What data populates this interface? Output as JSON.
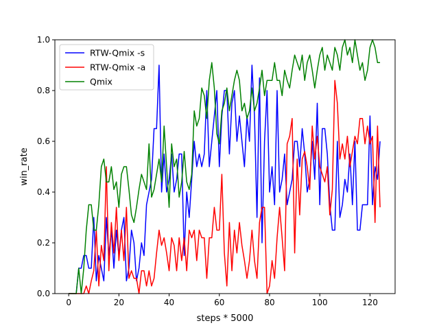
{
  "chart_data": {
    "type": "line",
    "title": "",
    "xlabel": "steps * 5000",
    "ylabel": "win_rate",
    "xlim": [
      -5.5,
      130
    ],
    "ylim": [
      0.0,
      1.0
    ],
    "xticks": [
      0,
      20,
      40,
      60,
      80,
      100,
      120
    ],
    "yticks": [
      0.0,
      0.2,
      0.4,
      0.6,
      0.8,
      1.0
    ],
    "xtick_labels": [
      "0",
      "20",
      "40",
      "60",
      "80",
      "100",
      "120"
    ],
    "ytick_labels": [
      "0.0",
      "0.2",
      "0.4",
      "0.6",
      "0.8",
      "1.0"
    ],
    "grid": false,
    "legend_position": "upper-left",
    "x": [
      0,
      1,
      2,
      3,
      4,
      5,
      6,
      7,
      8,
      9,
      10,
      11,
      12,
      13,
      14,
      15,
      16,
      17,
      18,
      19,
      20,
      21,
      22,
      23,
      24,
      25,
      26,
      27,
      28,
      29,
      30,
      31,
      32,
      33,
      34,
      35,
      36,
      37,
      38,
      39,
      40,
      41,
      42,
      43,
      44,
      45,
      46,
      47,
      48,
      49,
      50,
      51,
      52,
      53,
      54,
      55,
      56,
      57,
      58,
      59,
      60,
      61,
      62,
      63,
      64,
      65,
      66,
      67,
      68,
      69,
      70,
      71,
      72,
      73,
      74,
      75,
      76,
      77,
      78,
      79,
      80,
      81,
      82,
      83,
      84,
      85,
      86,
      87,
      88,
      89,
      90,
      91,
      92,
      93,
      94,
      95,
      96,
      97,
      98,
      99,
      100,
      101,
      102,
      103,
      104,
      105,
      106,
      107,
      108,
      109,
      110,
      111,
      112,
      113,
      114,
      115,
      116,
      117,
      118,
      119,
      120,
      121,
      122,
      123,
      124
    ],
    "series": [
      {
        "name": "RTW-Qmix -s",
        "color": "#0000ff",
        "values": [
          0.0,
          0.0,
          0.0,
          0.0,
          0.1,
          0.1,
          0.15,
          0.15,
          0.1,
          0.1,
          0.3,
          0.05,
          0.15,
          0.1,
          0.05,
          0.3,
          0.15,
          0.25,
          0.1,
          0.25,
          0.15,
          0.25,
          0.3,
          0.05,
          0.1,
          0.25,
          0.2,
          0.05,
          0.1,
          0.2,
          0.15,
          0.35,
          0.4,
          0.45,
          0.65,
          0.65,
          0.9,
          0.4,
          0.55,
          0.4,
          0.45,
          0.55,
          0.4,
          0.45,
          0.55,
          0.55,
          0.15,
          0.4,
          0.3,
          0.45,
          0.6,
          0.5,
          0.55,
          0.5,
          0.55,
          0.8,
          0.5,
          0.6,
          0.7,
          0.8,
          0.5,
          0.7,
          0.8,
          0.8,
          0.55,
          0.75,
          0.8,
          0.6,
          0.7,
          0.6,
          0.5,
          0.7,
          0.6,
          0.9,
          0.7,
          0.3,
          0.85,
          0.2,
          0.6,
          0.8,
          0.4,
          0.5,
          0.35,
          0.8,
          0.4,
          0.45,
          0.55,
          0.35,
          0.4,
          0.45,
          0.6,
          0.6,
          0.5,
          0.65,
          0.55,
          0.4,
          0.45,
          0.6,
          0.45,
          0.75,
          0.35,
          0.65,
          0.65,
          0.55,
          0.35,
          0.25,
          0.25,
          0.6,
          0.3,
          0.35,
          0.45,
          0.4,
          0.55,
          0.35,
          0.6,
          0.25,
          0.25,
          0.35,
          0.35,
          0.35,
          0.7,
          0.35,
          0.5,
          0.45,
          0.6
        ]
      },
      {
        "name": "RTW-Qmix -a",
        "color": "#ff0000",
        "values": [
          0.0,
          0.0,
          0.0,
          0.0,
          0.0,
          0.0,
          0.0,
          0.03,
          0.0,
          0.05,
          0.09,
          0.25,
          0.03,
          0.19,
          0.13,
          0.5,
          0.09,
          0.28,
          0.16,
          0.34,
          0.13,
          0.25,
          0.13,
          0.34,
          0.06,
          0.09,
          0.06,
          0.06,
          0.0,
          0.09,
          0.09,
          0.03,
          0.09,
          0.03,
          0.06,
          0.16,
          0.25,
          0.19,
          0.22,
          0.16,
          0.09,
          0.22,
          0.19,
          0.09,
          0.22,
          0.13,
          0.22,
          0.09,
          0.25,
          0.22,
          0.25,
          0.13,
          0.25,
          0.22,
          0.22,
          0.06,
          0.22,
          0.22,
          0.34,
          0.25,
          0.25,
          0.47,
          0.16,
          0.03,
          0.28,
          0.09,
          0.25,
          0.16,
          0.28,
          0.19,
          0.13,
          0.06,
          0.13,
          0.25,
          0.13,
          0.06,
          0.28,
          0.34,
          0.34,
          0.0,
          0.03,
          0.13,
          0.06,
          0.22,
          0.34,
          0.22,
          0.09,
          0.59,
          0.62,
          0.69,
          0.16,
          0.53,
          0.31,
          0.53,
          0.56,
          0.5,
          0.41,
          0.66,
          0.53,
          0.62,
          0.5,
          0.47,
          0.44,
          0.5,
          0.31,
          0.41,
          0.84,
          0.75,
          0.53,
          0.59,
          0.53,
          0.62,
          0.5,
          0.56,
          0.62,
          0.59,
          0.69,
          0.69,
          0.59,
          0.66,
          0.59,
          0.62,
          0.28,
          0.66,
          0.34
        ]
      },
      {
        "name": "Qmix",
        "color": "#008000",
        "values": [
          0.0,
          0.0,
          0.0,
          0.0,
          0.1,
          0.0,
          0.1,
          0.25,
          0.35,
          0.35,
          0.25,
          0.25,
          0.35,
          0.5,
          0.53,
          0.44,
          0.44,
          0.5,
          0.41,
          0.44,
          0.34,
          0.47,
          0.5,
          0.5,
          0.41,
          0.31,
          0.28,
          0.34,
          0.41,
          0.47,
          0.44,
          0.41,
          0.59,
          0.38,
          0.41,
          0.47,
          0.53,
          0.44,
          0.66,
          0.5,
          0.34,
          0.59,
          0.5,
          0.53,
          0.38,
          0.44,
          0.56,
          0.44,
          0.41,
          0.47,
          0.72,
          0.66,
          0.69,
          0.81,
          0.78,
          0.69,
          0.84,
          0.91,
          0.81,
          0.63,
          0.59,
          0.72,
          0.75,
          0.81,
          0.72,
          0.78,
          0.84,
          0.88,
          0.84,
          0.72,
          0.75,
          0.69,
          0.72,
          0.81,
          0.72,
          0.75,
          0.81,
          0.88,
          0.78,
          0.84,
          0.84,
          0.84,
          0.91,
          0.84,
          0.84,
          0.78,
          0.88,
          0.84,
          0.81,
          0.88,
          0.94,
          0.91,
          0.88,
          0.94,
          0.84,
          0.91,
          0.94,
          0.88,
          0.81,
          0.88,
          0.94,
          0.97,
          0.88,
          0.94,
          0.91,
          0.88,
          0.97,
          0.94,
          0.88,
          0.97,
          1.0,
          0.94,
          0.97,
          0.91,
          1.0,
          0.94,
          0.88,
          0.91,
          0.84,
          0.88,
          0.97,
          1.0,
          0.97,
          0.91,
          0.91
        ]
      }
    ]
  }
}
